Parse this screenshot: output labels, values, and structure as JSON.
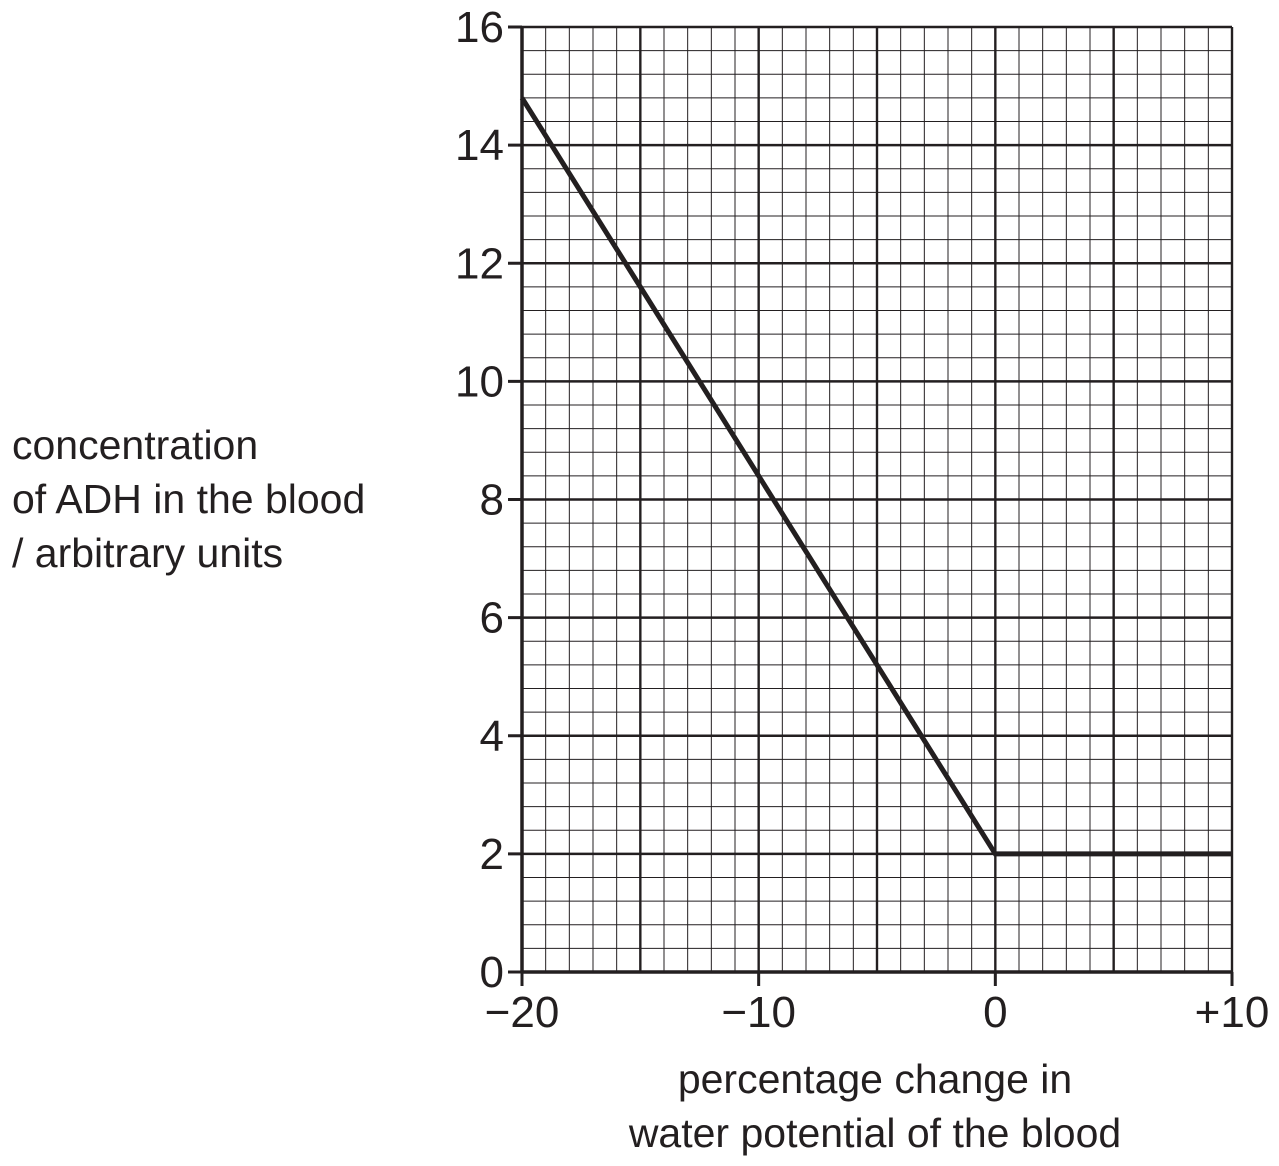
{
  "chart_data": {
    "type": "line",
    "title": "",
    "xlabel_lines": [
      "percentage change in",
      "water potential of the blood"
    ],
    "ylabel_lines": [
      "concentration",
      "of ADH in the blood",
      "/ arbitrary units"
    ],
    "xlim": [
      -20,
      10
    ],
    "ylim": [
      0,
      16
    ],
    "x_ticks": [
      -20,
      -10,
      0,
      10
    ],
    "x_tick_labels": [
      "−20",
      "−10",
      "0",
      "+10"
    ],
    "y_ticks": [
      0,
      2,
      4,
      6,
      8,
      10,
      12,
      14,
      16
    ],
    "y_tick_labels": [
      "0",
      "2",
      "4",
      "6",
      "8",
      "10",
      "12",
      "14",
      "16"
    ],
    "grid": true,
    "grid_minor_step_x": 1,
    "grid_minor_step_y": 0.4,
    "grid_major_step_x": 5,
    "grid_major_step_y": 2,
    "series": [
      {
        "x": [
          -20,
          0,
          10
        ],
        "y": [
          14.8,
          2,
          2
        ],
        "color": "#231f20"
      }
    ]
  }
}
